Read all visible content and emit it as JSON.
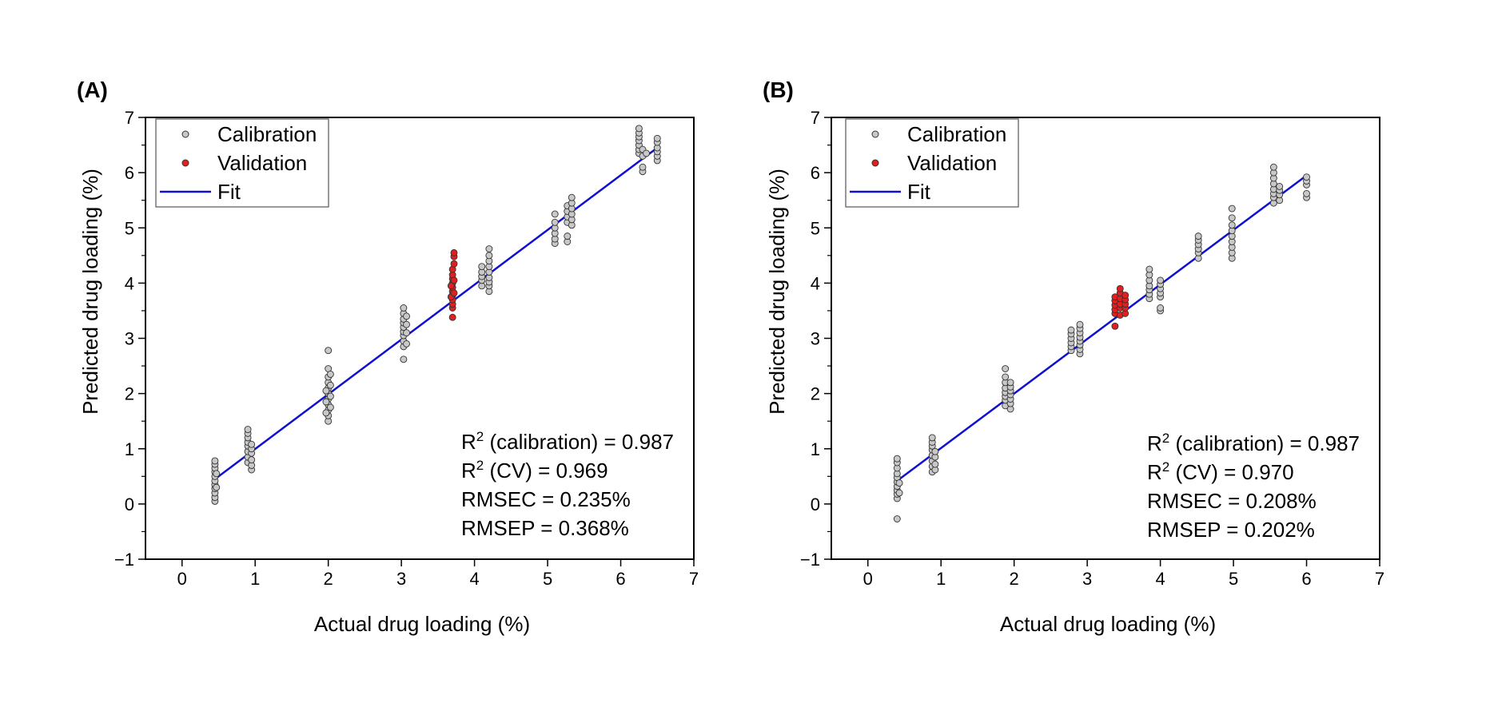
{
  "colors": {
    "calibration": "#c8c8c8",
    "validation": "#e02020",
    "fit": "#1010d0",
    "axis": "#000000"
  },
  "chart_data": [
    {
      "panel_label": "(A)",
      "type": "scatter",
      "xlabel": "Actual drug loading (%)",
      "ylabel": "Predicted drug loading (%)",
      "xlim": [
        -0.5,
        7
      ],
      "ylim": [
        -1,
        7
      ],
      "xticks": [
        0,
        1,
        2,
        3,
        4,
        5,
        6,
        7
      ],
      "yticks": [
        -1,
        0,
        1,
        2,
        3,
        4,
        5,
        6,
        7
      ],
      "ytick_labels": [
        "−1",
        "0",
        "1",
        "2",
        "3",
        "4",
        "5",
        "6",
        "7"
      ],
      "grid": false,
      "legend": {
        "position": "top-left",
        "entries": [
          "Calibration",
          "Validation",
          "Fit"
        ]
      },
      "stats": {
        "r2_cal_prefix": "R",
        "r2_cal_rest": " (calibration) = 0.987",
        "r2_cv_prefix": "R",
        "r2_cv_rest": " (CV) = 0.969",
        "rmsec": "RMSEC = 0.235%",
        "rmsep": "RMSEP = 0.368%",
        "sup": "2"
      },
      "fit_line": {
        "x": [
          0.45,
          6.5
        ],
        "y": [
          0.45,
          6.45
        ]
      },
      "series": [
        {
          "name": "Calibration",
          "points": [
            [
              0.45,
              0.05
            ],
            [
              0.45,
              0.12
            ],
            [
              0.45,
              0.2
            ],
            [
              0.45,
              0.28
            ],
            [
              0.45,
              0.35
            ],
            [
              0.45,
              0.42
            ],
            [
              0.45,
              0.5
            ],
            [
              0.45,
              0.58
            ],
            [
              0.45,
              0.65
            ],
            [
              0.45,
              0.72
            ],
            [
              0.45,
              0.78
            ],
            [
              0.47,
              0.3
            ],
            [
              0.47,
              0.55
            ],
            [
              0.9,
              0.75
            ],
            [
              0.9,
              0.85
            ],
            [
              0.9,
              0.95
            ],
            [
              0.9,
              1.05
            ],
            [
              0.9,
              1.12
            ],
            [
              0.9,
              1.2
            ],
            [
              0.9,
              1.28
            ],
            [
              0.9,
              1.35
            ],
            [
              0.95,
              0.62
            ],
            [
              0.95,
              0.7
            ],
            [
              0.95,
              0.8
            ],
            [
              0.95,
              0.92
            ],
            [
              0.95,
              1.0
            ],
            [
              0.95,
              1.08
            ],
            [
              2.0,
              1.5
            ],
            [
              2.0,
              1.6
            ],
            [
              2.0,
              1.7
            ],
            [
              2.0,
              1.8
            ],
            [
              2.0,
              1.9
            ],
            [
              2.0,
              2.0
            ],
            [
              2.0,
              2.1
            ],
            [
              2.0,
              2.2
            ],
            [
              2.0,
              2.3
            ],
            [
              2.0,
              2.45
            ],
            [
              2.0,
              2.78
            ],
            [
              1.97,
              1.65
            ],
            [
              1.97,
              1.85
            ],
            [
              1.97,
              2.05
            ],
            [
              2.03,
              1.75
            ],
            [
              2.03,
              1.95
            ],
            [
              2.03,
              2.15
            ],
            [
              2.03,
              2.35
            ],
            [
              3.03,
              2.62
            ],
            [
              3.03,
              2.85
            ],
            [
              3.03,
              2.95
            ],
            [
              3.03,
              3.05
            ],
            [
              3.03,
              3.12
            ],
            [
              3.03,
              3.2
            ],
            [
              3.03,
              3.28
            ],
            [
              3.03,
              3.35
            ],
            [
              3.03,
              3.45
            ],
            [
              3.03,
              3.55
            ],
            [
              3.07,
              2.9
            ],
            [
              3.07,
              3.1
            ],
            [
              3.07,
              3.25
            ],
            [
              3.07,
              3.4
            ],
            [
              4.1,
              3.95
            ],
            [
              4.1,
              4.05
            ],
            [
              4.1,
              4.12
            ],
            [
              4.1,
              4.2
            ],
            [
              4.1,
              4.3
            ],
            [
              4.2,
              3.85
            ],
            [
              4.2,
              3.95
            ],
            [
              4.2,
              4.02
            ],
            [
              4.2,
              4.1
            ],
            [
              4.2,
              4.2
            ],
            [
              4.2,
              4.3
            ],
            [
              4.2,
              4.4
            ],
            [
              4.2,
              4.5
            ],
            [
              4.2,
              4.62
            ],
            [
              5.1,
              4.72
            ],
            [
              5.1,
              4.8
            ],
            [
              5.1,
              4.9
            ],
            [
              5.1,
              5.0
            ],
            [
              5.1,
              5.1
            ],
            [
              5.1,
              5.25
            ],
            [
              5.27,
              4.75
            ],
            [
              5.27,
              4.85
            ],
            [
              5.27,
              5.1
            ],
            [
              5.27,
              5.2
            ],
            [
              5.27,
              5.3
            ],
            [
              5.27,
              5.4
            ],
            [
              5.33,
              5.05
            ],
            [
              5.33,
              5.15
            ],
            [
              5.33,
              5.25
            ],
            [
              5.33,
              5.35
            ],
            [
              5.33,
              5.45
            ],
            [
              5.33,
              5.55
            ],
            [
              6.25,
              6.35
            ],
            [
              6.25,
              6.42
            ],
            [
              6.25,
              6.5
            ],
            [
              6.25,
              6.58
            ],
            [
              6.25,
              6.65
            ],
            [
              6.25,
              6.72
            ],
            [
              6.25,
              6.8
            ],
            [
              6.3,
              6.02
            ],
            [
              6.3,
              6.1
            ],
            [
              6.3,
              6.3
            ],
            [
              6.3,
              6.42
            ],
            [
              6.35,
              6.35
            ],
            [
              6.5,
              6.22
            ],
            [
              6.5,
              6.3
            ],
            [
              6.5,
              6.38
            ],
            [
              6.5,
              6.45
            ],
            [
              6.5,
              6.55
            ],
            [
              6.5,
              6.62
            ]
          ]
        },
        {
          "name": "Validation",
          "points": [
            [
              3.7,
              3.38
            ],
            [
              3.7,
              3.55
            ],
            [
              3.7,
              3.62
            ],
            [
              3.7,
              3.7
            ],
            [
              3.7,
              3.78
            ],
            [
              3.7,
              3.85
            ],
            [
              3.7,
              3.92
            ],
            [
              3.7,
              4.0
            ],
            [
              3.7,
              4.08
            ],
            [
              3.7,
              4.15
            ],
            [
              3.7,
              4.25
            ],
            [
              3.72,
              4.35
            ],
            [
              3.72,
              4.48
            ],
            [
              3.72,
              4.55
            ],
            [
              3.68,
              3.75
            ],
            [
              3.68,
              3.95
            ],
            [
              3.72,
              3.82
            ],
            [
              3.72,
              4.05
            ]
          ]
        }
      ]
    },
    {
      "panel_label": "(B)",
      "type": "scatter",
      "xlabel": "Actual drug loading (%)",
      "ylabel": "Predicted drug loading (%)",
      "xlim": [
        -0.5,
        7
      ],
      "ylim": [
        -1,
        7
      ],
      "xticks": [
        0,
        1,
        2,
        3,
        4,
        5,
        6,
        7
      ],
      "yticks": [
        -1,
        0,
        1,
        2,
        3,
        4,
        5,
        6,
        7
      ],
      "ytick_labels": [
        "−1",
        "0",
        "1",
        "2",
        "3",
        "4",
        "5",
        "6",
        "7"
      ],
      "grid": false,
      "legend": {
        "position": "top-left",
        "entries": [
          "Calibration",
          "Validation",
          "Fit"
        ]
      },
      "stats": {
        "r2_cal_prefix": "R",
        "r2_cal_rest": " (calibration) = 0.987",
        "r2_cv_prefix": "R",
        "r2_cv_rest": " (CV) = 0.970",
        "rmsec": "RMSEC = 0.208%",
        "rmsep": "RMSEP = 0.202%",
        "sup": "2"
      },
      "fit_line": {
        "x": [
          0.4,
          6.0
        ],
        "y": [
          0.42,
          5.95
        ]
      },
      "series": [
        {
          "name": "Calibration",
          "points": [
            [
              0.4,
              -0.27
            ],
            [
              0.4,
              0.1
            ],
            [
              0.4,
              0.18
            ],
            [
              0.4,
              0.25
            ],
            [
              0.4,
              0.32
            ],
            [
              0.4,
              0.4
            ],
            [
              0.4,
              0.48
            ],
            [
              0.4,
              0.55
            ],
            [
              0.4,
              0.65
            ],
            [
              0.4,
              0.75
            ],
            [
              0.4,
              0.82
            ],
            [
              0.43,
              0.2
            ],
            [
              0.43,
              0.38
            ],
            [
              0.88,
              0.58
            ],
            [
              0.88,
              0.68
            ],
            [
              0.88,
              0.78
            ],
            [
              0.88,
              0.88
            ],
            [
              0.88,
              0.98
            ],
            [
              0.88,
              1.05
            ],
            [
              0.88,
              1.12
            ],
            [
              0.88,
              1.2
            ],
            [
              0.92,
              0.62
            ],
            [
              0.92,
              0.72
            ],
            [
              0.92,
              0.85
            ],
            [
              0.92,
              0.95
            ],
            [
              1.88,
              1.78
            ],
            [
              1.88,
              1.88
            ],
            [
              1.88,
              1.95
            ],
            [
              1.88,
              2.02
            ],
            [
              1.88,
              2.1
            ],
            [
              1.88,
              2.2
            ],
            [
              1.88,
              2.3
            ],
            [
              1.88,
              2.45
            ],
            [
              1.95,
              1.72
            ],
            [
              1.95,
              1.82
            ],
            [
              1.95,
              1.9
            ],
            [
              1.95,
              1.98
            ],
            [
              1.95,
              2.05
            ],
            [
              1.95,
              2.12
            ],
            [
              1.95,
              2.2
            ],
            [
              2.78,
              2.78
            ],
            [
              2.78,
              2.85
            ],
            [
              2.78,
              2.92
            ],
            [
              2.78,
              3.0
            ],
            [
              2.78,
              3.08
            ],
            [
              2.78,
              3.15
            ],
            [
              2.9,
              2.72
            ],
            [
              2.9,
              2.8
            ],
            [
              2.9,
              2.88
            ],
            [
              2.9,
              2.95
            ],
            [
              2.9,
              3.02
            ],
            [
              2.9,
              3.1
            ],
            [
              2.9,
              3.18
            ],
            [
              2.9,
              3.25
            ],
            [
              3.85,
              3.72
            ],
            [
              3.85,
              3.8
            ],
            [
              3.85,
              3.88
            ],
            [
              3.85,
              3.95
            ],
            [
              3.85,
              4.05
            ],
            [
              3.85,
              4.15
            ],
            [
              3.85,
              4.25
            ],
            [
              4.0,
              3.5
            ],
            [
              4.0,
              3.55
            ],
            [
              4.0,
              3.75
            ],
            [
              4.0,
              3.82
            ],
            [
              4.0,
              3.9
            ],
            [
              4.0,
              3.98
            ],
            [
              4.0,
              4.05
            ],
            [
              4.52,
              4.45
            ],
            [
              4.52,
              4.55
            ],
            [
              4.52,
              4.62
            ],
            [
              4.52,
              4.7
            ],
            [
              4.52,
              4.78
            ],
            [
              4.52,
              4.85
            ],
            [
              4.98,
              4.45
            ],
            [
              4.98,
              4.55
            ],
            [
              4.98,
              4.65
            ],
            [
              4.98,
              4.75
            ],
            [
              4.98,
              4.85
            ],
            [
              4.98,
              4.95
            ],
            [
              4.98,
              5.05
            ],
            [
              4.98,
              5.18
            ],
            [
              4.98,
              5.35
            ],
            [
              5.55,
              5.45
            ],
            [
              5.55,
              5.55
            ],
            [
              5.55,
              5.62
            ],
            [
              5.55,
              5.7
            ],
            [
              5.55,
              5.8
            ],
            [
              5.55,
              5.9
            ],
            [
              5.55,
              6.0
            ],
            [
              5.55,
              6.1
            ],
            [
              5.63,
              5.5
            ],
            [
              5.63,
              5.6
            ],
            [
              5.63,
              5.68
            ],
            [
              5.63,
              5.75
            ],
            [
              6.0,
              5.55
            ],
            [
              6.0,
              5.62
            ],
            [
              6.0,
              5.78
            ],
            [
              6.0,
              5.85
            ],
            [
              6.0,
              5.92
            ]
          ]
        },
        {
          "name": "Validation",
          "points": [
            [
              3.38,
              3.22
            ],
            [
              3.38,
              3.45
            ],
            [
              3.38,
              3.52
            ],
            [
              3.38,
              3.6
            ],
            [
              3.38,
              3.68
            ],
            [
              3.38,
              3.75
            ],
            [
              3.45,
              3.42
            ],
            [
              3.45,
              3.55
            ],
            [
              3.45,
              3.62
            ],
            [
              3.45,
              3.72
            ],
            [
              3.45,
              3.82
            ],
            [
              3.45,
              3.9
            ],
            [
              3.52,
              3.45
            ],
            [
              3.52,
              3.55
            ],
            [
              3.52,
              3.62
            ],
            [
              3.52,
              3.7
            ],
            [
              3.52,
              3.78
            ]
          ]
        }
      ]
    }
  ]
}
